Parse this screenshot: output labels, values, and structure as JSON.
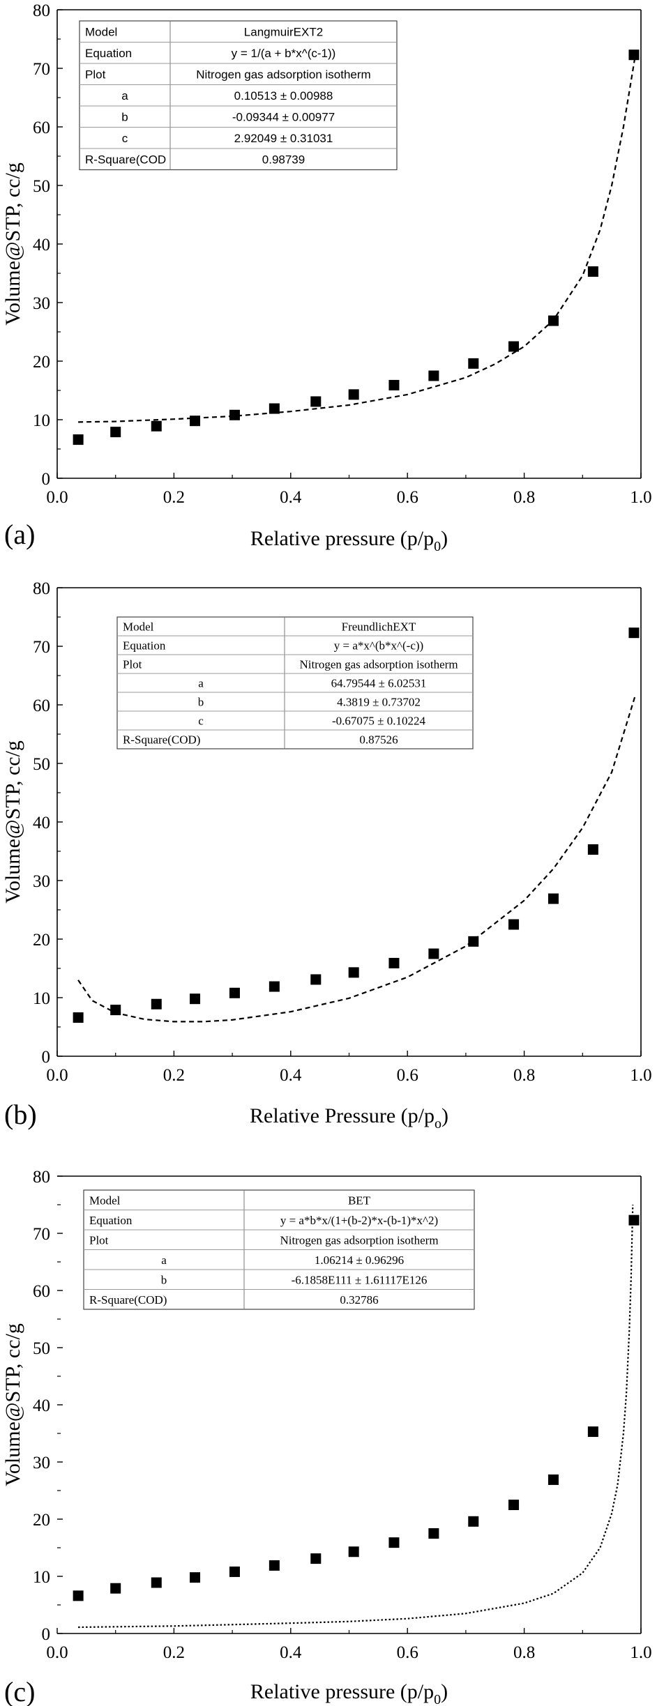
{
  "chart_data": [
    {
      "type": "scatter",
      "panel_label": "(a)",
      "xlabel": "Relative pressure (p/p",
      "xlabel_sub": "0",
      "xlabel_end": ")",
      "ylabel": "Volume@STP, cc/g",
      "xlim": [
        0.0,
        1.0
      ],
      "ylim": [
        0,
        80
      ],
      "xticks": [
        "0.0",
        "0.2",
        "0.4",
        "0.6",
        "0.8",
        "1.0"
      ],
      "yticks": [
        "0",
        "10",
        "20",
        "30",
        "40",
        "50",
        "60",
        "70",
        "80"
      ],
      "show_left_axis": true,
      "series": [
        {
          "kind": "points",
          "marker": "square",
          "x": [
            0.036,
            0.1,
            0.17,
            0.236,
            0.304,
            0.372,
            0.443,
            0.508,
            0.577,
            0.645,
            0.713,
            0.782,
            0.85,
            0.918,
            0.988
          ],
          "y": [
            6.6,
            7.9,
            8.9,
            9.8,
            10.8,
            11.9,
            13.1,
            14.3,
            15.9,
            17.5,
            19.6,
            22.5,
            26.9,
            35.3,
            72.3
          ]
        },
        {
          "kind": "fit",
          "style": "dashed",
          "x": [
            0.036,
            0.1,
            0.2,
            0.3,
            0.4,
            0.5,
            0.6,
            0.7,
            0.75,
            0.8,
            0.85,
            0.9,
            0.93,
            0.95,
            0.97,
            0.99
          ],
          "y": [
            9.6,
            9.7,
            10.1,
            10.6,
            11.4,
            12.5,
            14.3,
            17.2,
            19.5,
            22.5,
            27.0,
            34.6,
            42.4,
            50.0,
            60.0,
            72.0
          ]
        }
      ],
      "table": {
        "style": "sans",
        "rows": [
          [
            "Model",
            "LangmuirEXT2"
          ],
          [
            "Equation",
            "y = 1/(a + b*x^(c-1))"
          ],
          [
            "Plot",
            "Nitrogen gas adsorption isotherm"
          ],
          [
            "a",
            "0.10513 ± 0.00988"
          ],
          [
            "b",
            "-0.09344 ± 0.00977"
          ],
          [
            "c",
            "2.92049 ± 0.31031"
          ],
          [
            "R-Square(COD",
            "0.98739"
          ]
        ]
      }
    },
    {
      "type": "scatter",
      "panel_label": "(b)",
      "xlabel": "Relative Pressure (p/p",
      "xlabel_sub": "o",
      "xlabel_end": ")",
      "ylabel": "Volume@STP, cc/g",
      "xlim": [
        0.0,
        1.0
      ],
      "ylim": [
        0,
        80
      ],
      "xticks": [
        "0.0",
        "0.2",
        "0.4",
        "0.6",
        "0.8",
        "1.0"
      ],
      "yticks": [
        "0",
        "10",
        "20",
        "30",
        "40",
        "50",
        "60",
        "70",
        "80"
      ],
      "show_left_axis": true,
      "series": [
        {
          "kind": "points",
          "marker": "square",
          "x": [
            0.036,
            0.1,
            0.17,
            0.236,
            0.304,
            0.372,
            0.443,
            0.508,
            0.577,
            0.645,
            0.713,
            0.782,
            0.85,
            0.918,
            0.988
          ],
          "y": [
            6.6,
            7.9,
            8.9,
            9.8,
            10.8,
            11.9,
            13.1,
            14.3,
            15.9,
            17.5,
            19.6,
            22.5,
            26.9,
            35.3,
            72.3
          ]
        },
        {
          "kind": "fit",
          "style": "dashed",
          "x": [
            0.036,
            0.06,
            0.1,
            0.15,
            0.2,
            0.25,
            0.3,
            0.4,
            0.5,
            0.6,
            0.7,
            0.8,
            0.85,
            0.9,
            0.95,
            0.99
          ],
          "y": [
            13.0,
            9.5,
            7.4,
            6.3,
            5.9,
            5.9,
            6.2,
            7.6,
            9.9,
            13.5,
            18.8,
            26.6,
            32.0,
            39.0,
            48.5,
            61.5
          ]
        }
      ],
      "table": {
        "style": "serif",
        "rows": [
          [
            "Model",
            "FreundlichEXT"
          ],
          [
            "Equation",
            "y = a*x^(b*x^(-c))"
          ],
          [
            "Plot",
            "Nitrogen gas adsorption isotherm"
          ],
          [
            "a",
            "64.79544 ± 6.02531"
          ],
          [
            "b",
            "4.3819 ± 0.73702"
          ],
          [
            "c",
            "-0.67075 ± 0.10224"
          ],
          [
            "R-Square(COD)",
            "0.87526"
          ]
        ]
      }
    },
    {
      "type": "scatter",
      "panel_label": "(c)",
      "xlabel": "Relative pressure (p/p",
      "xlabel_sub": "0",
      "xlabel_end": ")",
      "ylabel": "Volume@STP, cc/g",
      "xlim": [
        0.0,
        1.0
      ],
      "ylim": [
        0,
        80
      ],
      "xticks": [
        "0.0",
        "0.2",
        "0.4",
        "0.6",
        "0.8",
        "1.0"
      ],
      "yticks": [
        "0",
        "10",
        "20",
        "30",
        "40",
        "50",
        "60",
        "70",
        "80"
      ],
      "show_left_axis": false,
      "series": [
        {
          "kind": "points",
          "marker": "square",
          "x": [
            0.036,
            0.1,
            0.17,
            0.236,
            0.304,
            0.372,
            0.443,
            0.508,
            0.577,
            0.645,
            0.713,
            0.782,
            0.85,
            0.918,
            0.988
          ],
          "y": [
            6.6,
            7.9,
            8.9,
            9.8,
            10.8,
            11.9,
            13.1,
            14.3,
            15.9,
            17.5,
            19.6,
            22.5,
            26.9,
            35.3,
            72.3
          ]
        },
        {
          "kind": "fit",
          "style": "dotted",
          "x": [
            0.036,
            0.2,
            0.4,
            0.5,
            0.6,
            0.7,
            0.8,
            0.85,
            0.9,
            0.93,
            0.95,
            0.96,
            0.97,
            0.975,
            0.98,
            0.983,
            0.986
          ],
          "y": [
            1.1,
            1.3,
            1.8,
            2.1,
            2.6,
            3.5,
            5.3,
            7.0,
            10.6,
            15.0,
            21.0,
            26.0,
            35.0,
            42.0,
            53.0,
            62.0,
            75.0
          ]
        }
      ],
      "table": {
        "style": "serif",
        "rows": [
          [
            "Model",
            "BET"
          ],
          [
            "Equation",
            "y = a*b*x/(1+(b-2)*x-(b-1)*x^2)"
          ],
          [
            "Plot",
            "Nitrogen gas adsorption isotherm"
          ],
          [
            "a",
            "1.06214 ± 0.96296"
          ],
          [
            "b",
            "-6.1858E111 ± 1.61117E126"
          ],
          [
            "R-Square(COD)",
            "0.32786"
          ]
        ]
      }
    }
  ]
}
